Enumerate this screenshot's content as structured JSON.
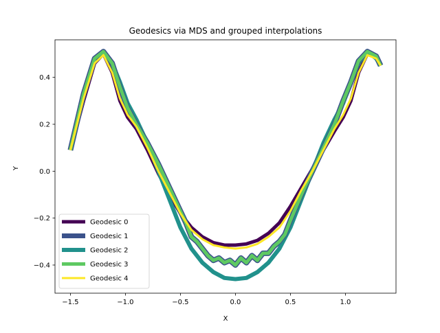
{
  "chart_data": {
    "type": "line",
    "title": "Geodesics via MDS and grouped interpolations",
    "xlabel": "X",
    "ylabel": "Y",
    "xlim": [
      -1.64,
      1.46
    ],
    "ylim": [
      -0.52,
      0.56
    ],
    "x_ticks": [
      -1.5,
      -1.0,
      -0.5,
      0.0,
      0.5,
      1.0
    ],
    "x_tick_labels": [
      "−1.5",
      "−1.0",
      "−0.5",
      "0.0",
      "0.5",
      "1.0"
    ],
    "y_ticks": [
      -0.4,
      -0.2,
      0.0,
      0.2,
      0.4
    ],
    "y_tick_labels": [
      "−0.4",
      "−0.2",
      "0.0",
      "0.2",
      "0.4"
    ],
    "grid": false,
    "legend_position": "lower-left",
    "series": [
      {
        "name": "Geodesic 0",
        "color": "#440154",
        "x": [
          -1.5,
          -1.38,
          -1.28,
          -1.2,
          -1.12,
          -1.05,
          -0.98,
          -0.9,
          -0.8,
          -0.7,
          -0.6,
          -0.5,
          -0.4,
          -0.3,
          -0.2,
          -0.1,
          0.0,
          0.1,
          0.2,
          0.3,
          0.4,
          0.5,
          0.6,
          0.7,
          0.8,
          0.9,
          0.98,
          1.05,
          1.12,
          1.2,
          1.28,
          1.32
        ],
        "y": [
          0.09,
          0.3,
          0.46,
          0.5,
          0.42,
          0.3,
          0.23,
          0.18,
          0.09,
          -0.01,
          -0.1,
          -0.18,
          -0.24,
          -0.28,
          -0.305,
          -0.315,
          -0.315,
          -0.31,
          -0.295,
          -0.265,
          -0.22,
          -0.15,
          -0.07,
          0.01,
          0.09,
          0.17,
          0.23,
          0.3,
          0.42,
          0.5,
          0.49,
          0.45
        ]
      },
      {
        "name": "Geodesic 1",
        "color": "#3b528b",
        "x": [
          -1.5,
          -1.38,
          -1.28,
          -1.2,
          -1.12,
          -1.05,
          -0.98,
          -0.9,
          -0.8,
          -0.7,
          -0.6,
          -0.5,
          -0.45,
          -0.4,
          -0.35,
          -0.3,
          -0.25,
          -0.2,
          -0.15,
          -0.1,
          -0.05,
          0.0,
          0.05,
          0.1,
          0.15,
          0.2,
          0.25,
          0.3,
          0.35,
          0.4,
          0.45,
          0.5,
          0.6,
          0.7,
          0.8,
          0.9,
          0.98,
          1.05,
          1.12,
          1.2,
          1.28,
          1.32
        ],
        "y": [
          0.09,
          0.33,
          0.48,
          0.51,
          0.46,
          0.36,
          0.27,
          0.2,
          0.12,
          0.03,
          -0.07,
          -0.17,
          -0.22,
          -0.28,
          -0.3,
          -0.33,
          -0.36,
          -0.38,
          -0.37,
          -0.39,
          -0.38,
          -0.4,
          -0.37,
          -0.39,
          -0.36,
          -0.38,
          -0.35,
          -0.35,
          -0.32,
          -0.3,
          -0.27,
          -0.21,
          -0.1,
          0.0,
          0.1,
          0.2,
          0.3,
          0.38,
          0.47,
          0.51,
          0.49,
          0.45
        ]
      },
      {
        "name": "Geodesic 2",
        "color": "#21918c",
        "x": [
          -1.5,
          -1.38,
          -1.28,
          -1.2,
          -1.12,
          -1.05,
          -0.98,
          -0.9,
          -0.8,
          -0.7,
          -0.6,
          -0.5,
          -0.4,
          -0.3,
          -0.2,
          -0.1,
          0.0,
          0.1,
          0.2,
          0.3,
          0.4,
          0.5,
          0.6,
          0.7,
          0.8,
          0.9,
          0.98,
          1.05,
          1.12,
          1.2,
          1.28,
          1.32
        ],
        "y": [
          0.09,
          0.33,
          0.48,
          0.51,
          0.46,
          0.38,
          0.29,
          0.22,
          0.12,
          0.0,
          -0.12,
          -0.24,
          -0.33,
          -0.39,
          -0.43,
          -0.455,
          -0.46,
          -0.455,
          -0.43,
          -0.39,
          -0.33,
          -0.24,
          -0.12,
          0.0,
          0.12,
          0.22,
          0.29,
          0.38,
          0.46,
          0.51,
          0.48,
          0.45
        ]
      },
      {
        "name": "Geodesic 3",
        "color": "#5ec962",
        "x": [
          -1.5,
          -1.38,
          -1.28,
          -1.2,
          -1.12,
          -1.05,
          -0.98,
          -0.9,
          -0.8,
          -0.7,
          -0.6,
          -0.5,
          -0.45,
          -0.4,
          -0.35,
          -0.3,
          -0.25,
          -0.2,
          -0.15,
          -0.1,
          -0.05,
          0.0,
          0.05,
          0.1,
          0.15,
          0.2,
          0.25,
          0.3,
          0.35,
          0.4,
          0.45,
          0.5,
          0.6,
          0.7,
          0.8,
          0.9,
          0.98,
          1.05,
          1.12,
          1.2,
          1.28,
          1.32
        ],
        "y": [
          0.09,
          0.33,
          0.48,
          0.51,
          0.46,
          0.36,
          0.27,
          0.2,
          0.12,
          0.03,
          -0.07,
          -0.17,
          -0.22,
          -0.28,
          -0.3,
          -0.33,
          -0.36,
          -0.38,
          -0.37,
          -0.39,
          -0.38,
          -0.4,
          -0.37,
          -0.39,
          -0.36,
          -0.38,
          -0.35,
          -0.35,
          -0.32,
          -0.3,
          -0.27,
          -0.21,
          -0.1,
          0.0,
          0.1,
          0.2,
          0.3,
          0.38,
          0.47,
          0.51,
          0.49,
          0.45
        ]
      },
      {
        "name": "Geodesic 4",
        "color": "#fde725",
        "x": [
          -1.5,
          -1.38,
          -1.28,
          -1.2,
          -1.12,
          -1.05,
          -0.98,
          -0.9,
          -0.8,
          -0.7,
          -0.6,
          -0.5,
          -0.4,
          -0.3,
          -0.2,
          -0.1,
          0.0,
          0.1,
          0.2,
          0.3,
          0.4,
          0.5,
          0.6,
          0.7,
          0.8,
          0.9,
          0.98,
          1.05,
          1.12,
          1.2,
          1.28,
          1.32
        ],
        "y": [
          0.09,
          0.31,
          0.46,
          0.495,
          0.42,
          0.31,
          0.24,
          0.19,
          0.1,
          0.0,
          -0.09,
          -0.18,
          -0.25,
          -0.29,
          -0.315,
          -0.325,
          -0.33,
          -0.325,
          -0.31,
          -0.28,
          -0.24,
          -0.17,
          -0.08,
          0.0,
          0.09,
          0.18,
          0.24,
          0.31,
          0.42,
          0.495,
          0.48,
          0.45
        ]
      }
    ]
  }
}
